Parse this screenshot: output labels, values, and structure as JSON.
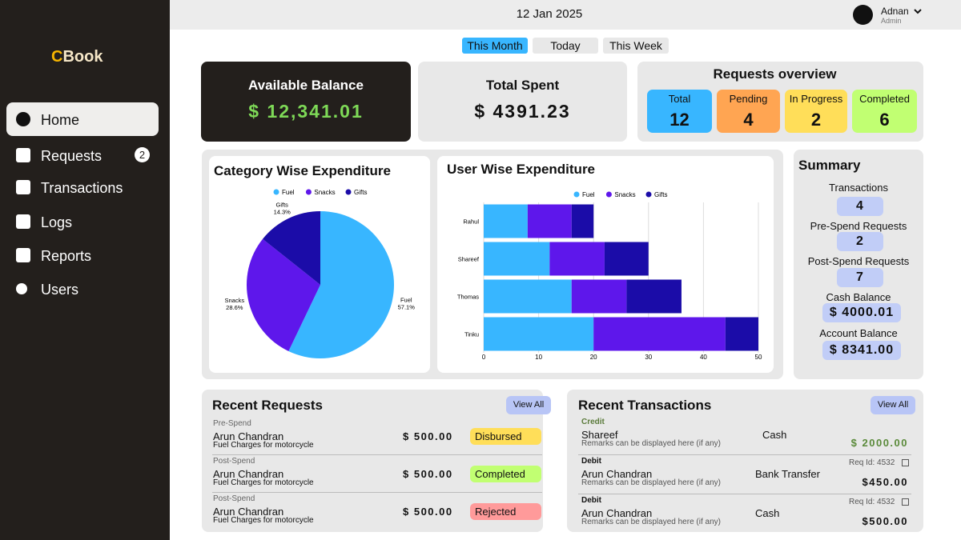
{
  "sidebar": {
    "logo_first": "C",
    "logo_rest": "Book",
    "nav": [
      {
        "label": "Home"
      },
      {
        "label": "Requests",
        "badge": 2
      },
      {
        "label": "Transactions"
      },
      {
        "label": "Logs"
      },
      {
        "label": "Reports"
      },
      {
        "label": "Users"
      }
    ]
  },
  "header": {
    "date": "12 Jan 2025",
    "user_name": "Adnan",
    "user_role": "Admin"
  },
  "filters": [
    "This Month",
    "Today",
    "This Week"
  ],
  "balance": {
    "available_label": "Available Balance",
    "available_value": "$ 12,341.01",
    "spent_label": "Total Spent",
    "spent_value": "$ 4391.23"
  },
  "requests_overview": {
    "title": "Requests overview",
    "items": [
      {
        "label": "Total",
        "count": 12
      },
      {
        "label": "Pending",
        "count": 4
      },
      {
        "label": "In Progress",
        "count": 2
      },
      {
        "label": "Completed",
        "count": 6
      }
    ]
  },
  "category_chart": {
    "type": "pie",
    "title": "Category Wise Expenditure",
    "categories": [
      "Fuel",
      "Snacks",
      "Gifts"
    ],
    "values": [
      57.1,
      28.6,
      14.3
    ],
    "value_labels": [
      "57.1%",
      "28.6%",
      "14.3%"
    ],
    "colors": [
      "#38b6ff",
      "#5e17eb",
      "#1b0ca8"
    ]
  },
  "user_chart": {
    "type": "bar",
    "orientation": "horizontal",
    "stacked": true,
    "title": "User Wise Expenditure",
    "categories": [
      "Rahul",
      "Shareef",
      "Thomas",
      "Tinku"
    ],
    "series": [
      {
        "name": "Fuel",
        "color": "#38b6ff",
        "values": [
          8,
          12,
          16,
          20
        ]
      },
      {
        "name": "Snacks",
        "color": "#5e17eb",
        "values": [
          8,
          10,
          10,
          24
        ]
      },
      {
        "name": "Gifts",
        "color": "#1b0ca8",
        "values": [
          4,
          8,
          10,
          6
        ]
      }
    ],
    "xlim": [
      0,
      50
    ],
    "xticks": [
      0,
      10,
      20,
      30,
      40,
      50
    ],
    "grid": true
  },
  "summary": {
    "title": "Summary",
    "items": [
      {
        "label": "Transactions",
        "value": 4
      },
      {
        "label": "Pre-Spend Requests",
        "value": 2
      },
      {
        "label": "Post-Spend Requests",
        "value": 7
      },
      {
        "label": "Cash Balance",
        "value": "$ 4000.01"
      },
      {
        "label": "Account Balance",
        "value": "$ 8341.00"
      }
    ]
  },
  "recent_requests": {
    "title": "Recent Requests",
    "button": "View All",
    "rows": [
      {
        "kind": "Pre-Spend",
        "name": "Arun Chandran",
        "desc": "Fuel Charges for motorcycle",
        "amount": "$ 500.00",
        "status": "Disbursed"
      },
      {
        "kind": "Post-Spend",
        "name": "Arun Chandran",
        "desc": "Fuel Charges for motorcycle",
        "amount": "$ 500.00",
        "status": "Completed"
      },
      {
        "kind": "Post-Spend",
        "name": "Arun Chandran",
        "desc": "Fuel Charges for motorcycle",
        "amount": "$ 500.00",
        "status": "Rejected"
      }
    ]
  },
  "recent_transactions": {
    "title": "Recent Transactions",
    "button": "View All",
    "rows": [
      {
        "kind": "Credit",
        "name": "Shareef",
        "remarks": "Remarks can be displayed here (if any)",
        "method": "Cash",
        "amount": "$ 2000.00"
      },
      {
        "kind": "Debit",
        "name": "Arun Chandran",
        "remarks": "Remarks can be displayed here (if any)",
        "method": "Bank Transfer",
        "req_id": "Req Id: 4532",
        "amount": "$450.00"
      },
      {
        "kind": "Debit",
        "name": "Arun Chandran",
        "remarks": "Remarks can be displayed here (if any)",
        "method": "Cash",
        "req_id": "Req Id: 4532",
        "amount": "$500.00"
      }
    ]
  }
}
